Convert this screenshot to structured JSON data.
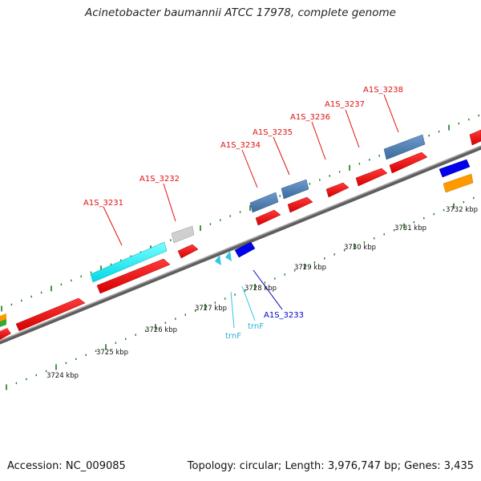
{
  "title": "Acinetobacter baumannii ATCC 17978, complete genome",
  "footer": {
    "accession_label": "Accession:",
    "accession": "NC_009085",
    "topology_label": "Topology:",
    "topology": "circular",
    "length_label": "Length:",
    "length": "3,976,747 bp",
    "genes_label": "Genes:",
    "genes": "3,435"
  },
  "scale": {
    "unit": "kbp",
    "ticks": [
      "3724 kbp",
      "3725 kbp",
      "3726 kbp",
      "3727 kbp",
      "3728 kbp",
      "3729 kbp",
      "3730 kbp",
      "3731 kbp",
      "3732 kbp"
    ]
  },
  "colors": {
    "forward_cds": "#ff0000",
    "reverse_cds": "#ff0000",
    "trna": "#33c6e0",
    "other_gene": "#0000ee",
    "highlight_gene": "#00ffff",
    "steel_gene": "#4a7ab0",
    "grey_gene": "#c8c8c8",
    "orange_gene": "#ff9900",
    "backbone": "#888888",
    "tick": "#1a7a1a",
    "label_red": "#e01010",
    "label_cyan": "#2ab0d0",
    "label_blue": "#0000cc"
  },
  "gene_labels": [
    {
      "name": "A1S_3231",
      "color": "label_red"
    },
    {
      "name": "A1S_3232",
      "color": "label_red"
    },
    {
      "name": "A1S_3234",
      "color": "label_red"
    },
    {
      "name": "A1S_3235",
      "color": "label_red"
    },
    {
      "name": "A1S_3236",
      "color": "label_red"
    },
    {
      "name": "A1S_3237",
      "color": "label_red"
    },
    {
      "name": "A1S_3238",
      "color": "label_red"
    },
    {
      "name": "A1S_3233",
      "color": "label_blue"
    },
    {
      "name": "trnF",
      "color": "label_cyan"
    },
    {
      "name": "trnF",
      "color": "label_cyan"
    }
  ]
}
